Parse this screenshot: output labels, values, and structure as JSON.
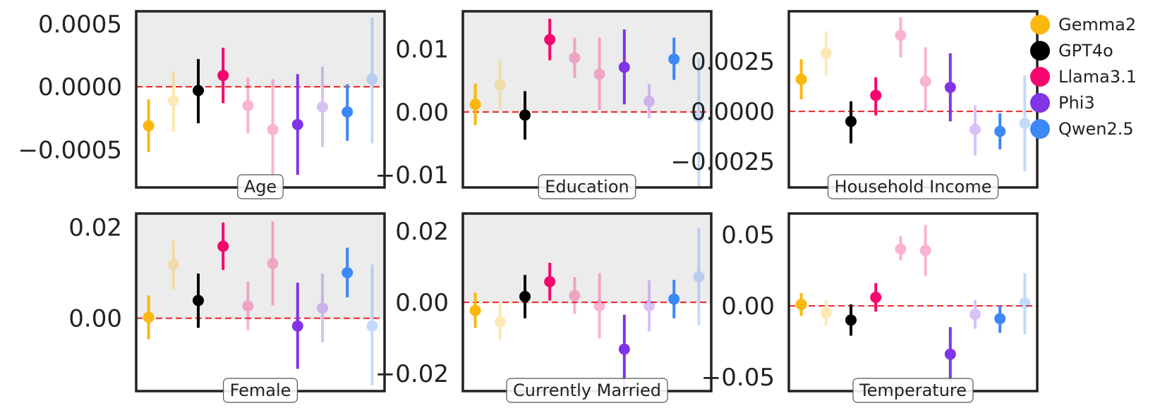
{
  "colors": {
    "Gemma2": "#fbb80f",
    "GPT4o": "#000000",
    "Llama3.1": "#f5066d",
    "Phi3": "#8134e6",
    "Qwen2.5": "#3c88f7",
    "zero_line": "#ee3333",
    "panel_shade": "#ececec",
    "frame": "#222222"
  },
  "legend": [
    {
      "name": "Gemma2",
      "color": "#fbb80f"
    },
    {
      "name": "GPT4o",
      "color": "#000000"
    },
    {
      "name": "Llama3.1",
      "color": "#f5066d"
    },
    {
      "name": "Phi3",
      "color": "#8134e6"
    },
    {
      "name": "Qwen2.5",
      "color": "#3c88f7"
    }
  ],
  "chart_data": [
    {
      "type": "scatter",
      "title": "Age",
      "ylim": [
        -0.0008,
        0.0006
      ],
      "yticks": [
        0.0005,
        0.0,
        -0.0005
      ],
      "yticklabels": [
        "0.0005",
        "0.0000",
        "−0.0005"
      ],
      "shaded": true,
      "points": [
        {
          "model": "Gemma2",
          "faded": false,
          "y": -0.00031,
          "lo": -0.00052,
          "hi": -0.0001
        },
        {
          "model": "Gemma2",
          "faded": true,
          "y": -0.00011,
          "lo": -0.00036,
          "hi": 0.00012
        },
        {
          "model": "GPT4o",
          "faded": false,
          "y": -3e-05,
          "lo": -0.00029,
          "hi": 0.00022
        },
        {
          "model": "Llama3.1",
          "faded": false,
          "y": 9e-05,
          "lo": -0.00013,
          "hi": 0.00031
        },
        {
          "model": "Llama3.1",
          "faded": true,
          "y": -0.00015,
          "lo": -0.00037,
          "hi": 7e-05
        },
        {
          "model": "Llama3.1",
          "faded": true,
          "y": -0.00034,
          "lo": -0.00075,
          "hi": 6e-05
        },
        {
          "model": "Phi3",
          "faded": false,
          "y": -0.0003,
          "lo": -0.0007,
          "hi": 0.0001
        },
        {
          "model": "Phi3",
          "faded": true,
          "y": -0.00016,
          "lo": -0.00048,
          "hi": 0.00016
        },
        {
          "model": "Qwen2.5",
          "faded": false,
          "y": -0.0002,
          "lo": -0.00043,
          "hi": 2e-05
        },
        {
          "model": "Qwen2.5",
          "faded": true,
          "y": 6e-05,
          "lo": -0.00045,
          "hi": 0.00055
        }
      ]
    },
    {
      "type": "scatter",
      "title": "Education",
      "ylim": [
        -0.012,
        0.016
      ],
      "yticks": [
        0.01,
        0.0,
        -0.01
      ],
      "yticklabels": [
        "0.01",
        "0.00",
        "−0.01"
      ],
      "shaded": true,
      "points": [
        {
          "model": "Gemma2",
          "faded": false,
          "y": 0.0012,
          "lo": -0.0021,
          "hi": 0.0045
        },
        {
          "model": "Gemma2",
          "faded": true,
          "y": 0.0043,
          "lo": 0.0005,
          "hi": 0.0083
        },
        {
          "model": "GPT4o",
          "faded": false,
          "y": -0.0005,
          "lo": -0.0044,
          "hi": 0.0033
        },
        {
          "model": "Llama3.1",
          "faded": false,
          "y": 0.0115,
          "lo": 0.0082,
          "hi": 0.0148
        },
        {
          "model": "Llama3.1",
          "faded": true,
          "y": 0.0086,
          "lo": 0.0054,
          "hi": 0.0118
        },
        {
          "model": "Llama3.1",
          "faded": true,
          "y": 0.006,
          "lo": 0.0003,
          "hi": 0.0118
        },
        {
          "model": "Phi3",
          "faded": false,
          "y": 0.0071,
          "lo": 0.0012,
          "hi": 0.0131
        },
        {
          "model": "Phi3",
          "faded": true,
          "y": 0.0017,
          "lo": -0.001,
          "hi": 0.0044
        },
        {
          "model": "Qwen2.5",
          "faded": false,
          "y": 0.0084,
          "lo": 0.0051,
          "hi": 0.0118
        },
        {
          "model": "Qwen2.5",
          "faded": true,
          "y": -0.0008,
          "lo": -0.012,
          "hi": 0.0085
        }
      ]
    },
    {
      "type": "scatter",
      "title": "Household Income",
      "ylim": [
        -0.0038,
        0.005
      ],
      "yticks": [
        0.0025,
        0.0,
        -0.0025
      ],
      "yticklabels": [
        "0.0025",
        "0.0000",
        "−0.0025"
      ],
      "shaded": false,
      "points": [
        {
          "model": "Gemma2",
          "faded": false,
          "y": 0.0016,
          "lo": 0.0006,
          "hi": 0.0026
        },
        {
          "model": "Gemma2",
          "faded": true,
          "y": 0.0029,
          "lo": 0.0018,
          "hi": 0.004
        },
        {
          "model": "GPT4o",
          "faded": false,
          "y": -0.0005,
          "lo": -0.0016,
          "hi": 0.0005
        },
        {
          "model": "Llama3.1",
          "faded": false,
          "y": 0.0008,
          "lo": -0.0002,
          "hi": 0.0017
        },
        {
          "model": "Llama3.1",
          "faded": true,
          "y": 0.0038,
          "lo": 0.0027,
          "hi": 0.0047
        },
        {
          "model": "Llama3.1",
          "faded": true,
          "y": 0.0015,
          "lo": 0.0,
          "hi": 0.0032
        },
        {
          "model": "Phi3",
          "faded": false,
          "y": 0.0012,
          "lo": -0.0005,
          "hi": 0.0029
        },
        {
          "model": "Phi3",
          "faded": true,
          "y": -0.0009,
          "lo": -0.0022,
          "hi": 0.0003
        },
        {
          "model": "Qwen2.5",
          "faded": false,
          "y": -0.001,
          "lo": -0.0019,
          "hi": -0.0001
        },
        {
          "model": "Qwen2.5",
          "faded": true,
          "y": -0.0006,
          "lo": -0.003,
          "hi": 0.0018
        }
      ]
    },
    {
      "type": "scatter",
      "title": "Female",
      "ylim": [
        -0.016,
        0.023
      ],
      "yticks": [
        0.02,
        0.0
      ],
      "yticklabels": [
        "0.02",
        "0.00"
      ],
      "shaded": true,
      "points": [
        {
          "model": "Gemma2",
          "faded": false,
          "y": 0.0002,
          "lo": -0.0046,
          "hi": 0.005
        },
        {
          "model": "Gemma2",
          "faded": true,
          "y": 0.0118,
          "lo": 0.0063,
          "hi": 0.0172
        },
        {
          "model": "GPT4o",
          "faded": false,
          "y": 0.0039,
          "lo": -0.0021,
          "hi": 0.0098
        },
        {
          "model": "Llama3.1",
          "faded": false,
          "y": 0.0158,
          "lo": 0.0106,
          "hi": 0.021
        },
        {
          "model": "Llama3.1",
          "faded": true,
          "y": 0.0027,
          "lo": -0.0026,
          "hi": 0.008
        },
        {
          "model": "Llama3.1",
          "faded": true,
          "y": 0.012,
          "lo": 0.0028,
          "hi": 0.0213
        },
        {
          "model": "Phi3",
          "faded": false,
          "y": -0.0017,
          "lo": -0.0111,
          "hi": 0.0078
        },
        {
          "model": "Phi3",
          "faded": true,
          "y": 0.0022,
          "lo": -0.0053,
          "hi": 0.0098
        },
        {
          "model": "Qwen2.5",
          "faded": false,
          "y": 0.01,
          "lo": 0.0046,
          "hi": 0.0155
        },
        {
          "model": "Qwen2.5",
          "faded": true,
          "y": -0.0017,
          "lo": -0.0147,
          "hi": 0.0118
        }
      ]
    },
    {
      "type": "scatter",
      "title": "Currently Married",
      "ylim": [
        -0.025,
        0.025
      ],
      "yticks": [
        0.02,
        0.0,
        -0.02
      ],
      "yticklabels": [
        "0.02",
        "0.00",
        "−0.02"
      ],
      "shaded": true,
      "points": [
        {
          "model": "Gemma2",
          "faded": false,
          "y": -0.0023,
          "lo": -0.0072,
          "hi": 0.0027
        },
        {
          "model": "Gemma2",
          "faded": true,
          "y": -0.0055,
          "lo": -0.0108,
          "hi": -0.0002
        },
        {
          "model": "GPT4o",
          "faded": false,
          "y": 0.0016,
          "lo": -0.0045,
          "hi": 0.0077
        },
        {
          "model": "Llama3.1",
          "faded": false,
          "y": 0.0058,
          "lo": 0.0005,
          "hi": 0.0111
        },
        {
          "model": "Llama3.1",
          "faded": true,
          "y": 0.0019,
          "lo": -0.0033,
          "hi": 0.0071
        },
        {
          "model": "Llama3.1",
          "faded": true,
          "y": -0.001,
          "lo": -0.0102,
          "hi": 0.0082
        },
        {
          "model": "Phi3",
          "faded": false,
          "y": -0.0132,
          "lo": -0.0235,
          "hi": -0.0035
        },
        {
          "model": "Phi3",
          "faded": true,
          "y": -0.001,
          "lo": -0.0082,
          "hi": 0.0062
        },
        {
          "model": "Qwen2.5",
          "faded": false,
          "y": 0.0009,
          "lo": -0.0045,
          "hi": 0.0063
        },
        {
          "model": "Qwen2.5",
          "faded": true,
          "y": 0.0072,
          "lo": -0.0065,
          "hi": 0.0208
        }
      ]
    },
    {
      "type": "scatter",
      "title": "Temperature",
      "ylim": [
        -0.06,
        0.065
      ],
      "yticks": [
        0.05,
        0.0,
        -0.05
      ],
      "yticklabels": [
        "0.05",
        "0.00",
        "−0.05"
      ],
      "shaded": false,
      "points": [
        {
          "model": "Gemma2",
          "faded": false,
          "y": 0.001,
          "lo": -0.007,
          "hi": 0.009
        },
        {
          "model": "Gemma2",
          "faded": true,
          "y": -0.005,
          "lo": -0.014,
          "hi": 0.004
        },
        {
          "model": "GPT4o",
          "faded": false,
          "y": -0.01,
          "lo": -0.021,
          "hi": 0.001
        },
        {
          "model": "Llama3.1",
          "faded": false,
          "y": 0.006,
          "lo": -0.004,
          "hi": 0.016
        },
        {
          "model": "Llama3.1",
          "faded": true,
          "y": 0.04,
          "lo": 0.032,
          "hi": 0.049
        },
        {
          "model": "Llama3.1",
          "faded": true,
          "y": 0.039,
          "lo": 0.021,
          "hi": 0.057
        },
        {
          "model": "Phi3",
          "faded": false,
          "y": -0.034,
          "lo": -0.054,
          "hi": -0.015
        },
        {
          "model": "Phi3",
          "faded": true,
          "y": -0.006,
          "lo": -0.016,
          "hi": 0.004
        },
        {
          "model": "Qwen2.5",
          "faded": false,
          "y": -0.009,
          "lo": -0.019,
          "hi": 0.0
        },
        {
          "model": "Qwen2.5",
          "faded": true,
          "y": 0.002,
          "lo": -0.02,
          "hi": 0.023
        }
      ]
    }
  ]
}
